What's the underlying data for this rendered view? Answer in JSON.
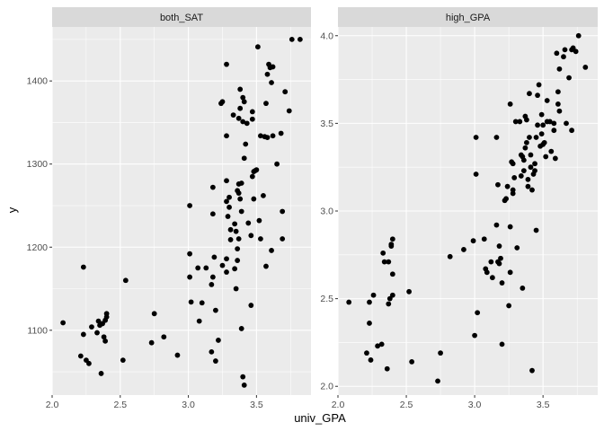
{
  "chart_data": {
    "type": "scatter",
    "xlabel": "univ_GPA",
    "ylabel": "y",
    "point_color": "#000000",
    "panel_bg": "#ebebeb",
    "strip_bg": "#d9d9d9",
    "grid_color": "#ffffff",
    "panels": [
      {
        "name": "both_SAT",
        "xlim": [
          2.0,
          3.9
        ],
        "ylim": [
          1022,
          1465
        ],
        "xticks": [
          2.0,
          2.5,
          3.0,
          3.5
        ],
        "xtick_labels": [
          "2.0",
          "2.5",
          "3.0",
          "3.5"
        ],
        "yticks": [
          1100,
          1200,
          1300,
          1400
        ],
        "ytick_labels": [
          "1100",
          "1200",
          "1300",
          "1400"
        ],
        "points": [
          [
            2.08,
            1109
          ],
          [
            2.21,
            1069
          ],
          [
            2.23,
            1095
          ],
          [
            2.23,
            1176
          ],
          [
            2.25,
            1064
          ],
          [
            2.27,
            1060
          ],
          [
            2.29,
            1104
          ],
          [
            2.33,
            1097
          ],
          [
            2.34,
            1111
          ],
          [
            2.35,
            1106
          ],
          [
            2.36,
            1048
          ],
          [
            2.37,
            1108
          ],
          [
            2.38,
            1092
          ],
          [
            2.39,
            1087
          ],
          [
            2.39,
            1112
          ],
          [
            2.4,
            1116
          ],
          [
            2.4,
            1120
          ],
          [
            2.52,
            1064
          ],
          [
            2.54,
            1160
          ],
          [
            2.73,
            1085
          ],
          [
            2.75,
            1120
          ],
          [
            2.82,
            1092
          ],
          [
            2.92,
            1070
          ],
          [
            3.01,
            1164
          ],
          [
            3.01,
            1192
          ],
          [
            3.01,
            1250
          ],
          [
            3.02,
            1134
          ],
          [
            3.07,
            1175
          ],
          [
            3.08,
            1111
          ],
          [
            3.1,
            1133
          ],
          [
            3.13,
            1175
          ],
          [
            3.17,
            1074
          ],
          [
            3.17,
            1155
          ],
          [
            3.18,
            1164
          ],
          [
            3.18,
            1272
          ],
          [
            3.18,
            1240
          ],
          [
            3.19,
            1188
          ],
          [
            3.2,
            1063
          ],
          [
            3.2,
            1124
          ],
          [
            3.22,
            1088
          ],
          [
            3.24,
            1373
          ],
          [
            3.25,
            1375
          ],
          [
            3.25,
            1178
          ],
          [
            3.28,
            1334
          ],
          [
            3.28,
            1420
          ],
          [
            3.28,
            1255
          ],
          [
            3.28,
            1280
          ],
          [
            3.28,
            1186
          ],
          [
            3.28,
            1170
          ],
          [
            3.29,
            1237
          ],
          [
            3.3,
            1260
          ],
          [
            3.3,
            1248
          ],
          [
            3.31,
            1221
          ],
          [
            3.31,
            1209
          ],
          [
            3.33,
            1359
          ],
          [
            3.34,
            1228
          ],
          [
            3.34,
            1174
          ],
          [
            3.35,
            1219
          ],
          [
            3.35,
            1150
          ],
          [
            3.36,
            1268
          ],
          [
            3.36,
            1198
          ],
          [
            3.36,
            1184
          ],
          [
            3.37,
            1355
          ],
          [
            3.37,
            1276
          ],
          [
            3.37,
            1265
          ],
          [
            3.37,
            1210
          ],
          [
            3.38,
            1367
          ],
          [
            3.38,
            1390
          ],
          [
            3.38,
            1258
          ],
          [
            3.39,
            1102
          ],
          [
            3.39,
            1243
          ],
          [
            3.39,
            1277
          ],
          [
            3.4,
            1351
          ],
          [
            3.4,
            1380
          ],
          [
            3.4,
            1044
          ],
          [
            3.41,
            1034
          ],
          [
            3.41,
            1375
          ],
          [
            3.41,
            1307
          ],
          [
            3.42,
            1324
          ],
          [
            3.43,
            1349
          ],
          [
            3.44,
            1229
          ],
          [
            3.46,
            1130
          ],
          [
            3.46,
            1214
          ],
          [
            3.47,
            1354
          ],
          [
            3.47,
            1363
          ],
          [
            3.47,
            1285
          ],
          [
            3.48,
            1291
          ],
          [
            3.48,
            1258
          ],
          [
            3.49,
            1292
          ],
          [
            3.5,
            1293
          ],
          [
            3.51,
            1441
          ],
          [
            3.52,
            1232
          ],
          [
            3.53,
            1334
          ],
          [
            3.53,
            1210
          ],
          [
            3.55,
            1262
          ],
          [
            3.56,
            1333
          ],
          [
            3.57,
            1373
          ],
          [
            3.57,
            1177
          ],
          [
            3.58,
            1332
          ],
          [
            3.58,
            1408
          ],
          [
            3.59,
            1420
          ],
          [
            3.6,
            1416
          ],
          [
            3.61,
            1398
          ],
          [
            3.61,
            1196
          ],
          [
            3.62,
            1417
          ],
          [
            3.62,
            1334
          ],
          [
            3.65,
            1300
          ],
          [
            3.68,
            1337
          ],
          [
            3.69,
            1243
          ],
          [
            3.69,
            1210
          ],
          [
            3.71,
            1387
          ],
          [
            3.74,
            1364
          ],
          [
            3.76,
            1450
          ],
          [
            3.82,
            1450
          ]
        ]
      },
      {
        "name": "high_GPA",
        "xlim": [
          2.0,
          3.9
        ],
        "ylim": [
          1.95,
          4.05
        ],
        "xticks": [
          2.0,
          2.5,
          3.0,
          3.5
        ],
        "xtick_labels": [
          "2.0",
          "2.5",
          "3.0",
          "3.5"
        ],
        "yticks": [
          2.0,
          2.5,
          3.0,
          3.5,
          4.0
        ],
        "ytick_labels": [
          "2.0",
          "2.5",
          "3.0",
          "3.5",
          "4.0"
        ],
        "points": [
          [
            2.08,
            2.48
          ],
          [
            2.21,
            2.19
          ],
          [
            2.23,
            2.48
          ],
          [
            2.23,
            2.36
          ],
          [
            2.24,
            2.15
          ],
          [
            2.26,
            2.52
          ],
          [
            2.29,
            2.23
          ],
          [
            2.32,
            2.24
          ],
          [
            2.33,
            2.76
          ],
          [
            2.34,
            2.71
          ],
          [
            2.36,
            2.1
          ],
          [
            2.37,
            2.71
          ],
          [
            2.37,
            2.47
          ],
          [
            2.38,
            2.5
          ],
          [
            2.39,
            2.81
          ],
          [
            2.39,
            2.8
          ],
          [
            2.4,
            2.84
          ],
          [
            2.4,
            2.64
          ],
          [
            2.4,
            2.52
          ],
          [
            2.52,
            2.54
          ],
          [
            2.54,
            2.14
          ],
          [
            2.73,
            2.03
          ],
          [
            2.75,
            2.19
          ],
          [
            2.82,
            2.74
          ],
          [
            2.92,
            2.78
          ],
          [
            2.99,
            2.83
          ],
          [
            3.0,
            2.29
          ],
          [
            3.01,
            3.21
          ],
          [
            3.01,
            3.42
          ],
          [
            3.02,
            2.42
          ],
          [
            3.07,
            2.84
          ],
          [
            3.08,
            2.67
          ],
          [
            3.09,
            2.65
          ],
          [
            3.12,
            2.71
          ],
          [
            3.13,
            2.62
          ],
          [
            3.16,
            2.92
          ],
          [
            3.16,
            3.42
          ],
          [
            3.17,
            3.15
          ],
          [
            3.17,
            2.71
          ],
          [
            3.18,
            2.8
          ],
          [
            3.18,
            2.7
          ],
          [
            3.19,
            2.73
          ],
          [
            3.2,
            2.59
          ],
          [
            3.2,
            2.24
          ],
          [
            3.22,
            3.06
          ],
          [
            3.23,
            3.07
          ],
          [
            3.24,
            3.14
          ],
          [
            3.25,
            2.46
          ],
          [
            3.26,
            2.65
          ],
          [
            3.26,
            3.61
          ],
          [
            3.26,
            2.91
          ],
          [
            3.27,
            3.28
          ],
          [
            3.28,
            3.12
          ],
          [
            3.28,
            3.27
          ],
          [
            3.28,
            3.1
          ],
          [
            3.29,
            3.19
          ],
          [
            3.3,
            3.51
          ],
          [
            3.31,
            2.79
          ],
          [
            3.33,
            3.51
          ],
          [
            3.34,
            3.32
          ],
          [
            3.34,
            3.2
          ],
          [
            3.35,
            2.56
          ],
          [
            3.35,
            3.31
          ],
          [
            3.36,
            3.29
          ],
          [
            3.36,
            3.23
          ],
          [
            3.37,
            3.54
          ],
          [
            3.37,
            3.36
          ],
          [
            3.38,
            3.52
          ],
          [
            3.38,
            3.39
          ],
          [
            3.39,
            3.14
          ],
          [
            3.39,
            3.18
          ],
          [
            3.4,
            3.67
          ],
          [
            3.4,
            3.42
          ],
          [
            3.41,
            3.32
          ],
          [
            3.41,
            3.25
          ],
          [
            3.42,
            3.12
          ],
          [
            3.42,
            2.09
          ],
          [
            3.43,
            3.21
          ],
          [
            3.44,
            3.23
          ],
          [
            3.44,
            3.27
          ],
          [
            3.45,
            3.42
          ],
          [
            3.45,
            2.89
          ],
          [
            3.46,
            3.49
          ],
          [
            3.46,
            3.66
          ],
          [
            3.47,
            3.72
          ],
          [
            3.48,
            3.37
          ],
          [
            3.49,
            3.44
          ],
          [
            3.49,
            3.55
          ],
          [
            3.5,
            3.38
          ],
          [
            3.5,
            3.49
          ],
          [
            3.51,
            3.39
          ],
          [
            3.52,
            3.31
          ],
          [
            3.53,
            3.63
          ],
          [
            3.53,
            3.51
          ],
          [
            3.55,
            3.51
          ],
          [
            3.56,
            3.34
          ],
          [
            3.58,
            3.46
          ],
          [
            3.58,
            3.5
          ],
          [
            3.59,
            3.3
          ],
          [
            3.6,
            3.9
          ],
          [
            3.61,
            3.68
          ],
          [
            3.61,
            3.61
          ],
          [
            3.62,
            3.57
          ],
          [
            3.62,
            3.81
          ],
          [
            3.65,
            3.88
          ],
          [
            3.66,
            3.92
          ],
          [
            3.67,
            3.5
          ],
          [
            3.69,
            3.76
          ],
          [
            3.71,
            3.46
          ],
          [
            3.71,
            3.92
          ],
          [
            3.72,
            3.93
          ],
          [
            3.74,
            3.91
          ],
          [
            3.76,
            4.0
          ],
          [
            3.81,
            3.82
          ]
        ]
      }
    ]
  }
}
